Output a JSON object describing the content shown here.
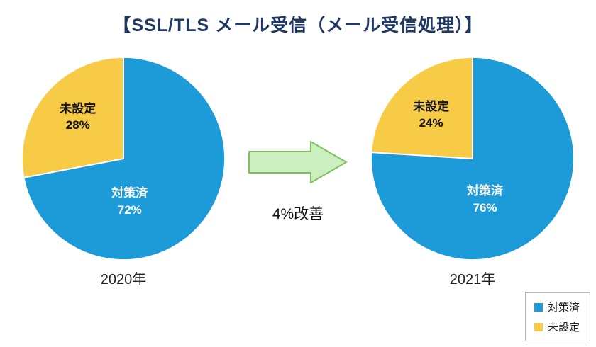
{
  "title": "【SSL/TLS メール受信（メール受信処理）】",
  "arrow": {
    "label": "4%改善"
  },
  "colors": {
    "series_blue": "#1d9bd8",
    "series_yellow": "#f8cb46",
    "arrow_fill": "#ccefc0",
    "arrow_stroke": "#7fc060",
    "title_navy": "#1f3864"
  },
  "legend": {
    "items": [
      {
        "label": "対策済",
        "color": "#1d9bd8"
      },
      {
        "label": "未設定",
        "color": "#f8cb46"
      }
    ]
  },
  "chart_data": [
    {
      "type": "pie",
      "title": "2020年",
      "labels": [
        "対策済",
        "未設定"
      ],
      "values": [
        72,
        28
      ],
      "colors": [
        "#1d9bd8",
        "#f8cb46"
      ],
      "start_angle_deg": 0,
      "direction": "clockwise",
      "slice_labels": [
        {
          "name": "対策済",
          "pct": "72%"
        },
        {
          "name": "未設定",
          "pct": "28%"
        }
      ]
    },
    {
      "type": "pie",
      "title": "2021年",
      "labels": [
        "対策済",
        "未設定"
      ],
      "values": [
        76,
        24
      ],
      "colors": [
        "#1d9bd8",
        "#f8cb46"
      ],
      "start_angle_deg": 0,
      "direction": "clockwise",
      "slice_labels": [
        {
          "name": "対策済",
          "pct": "76%"
        },
        {
          "name": "未設定",
          "pct": "24%"
        }
      ],
      "annotation": "4%改善 (vs 2020)"
    }
  ]
}
